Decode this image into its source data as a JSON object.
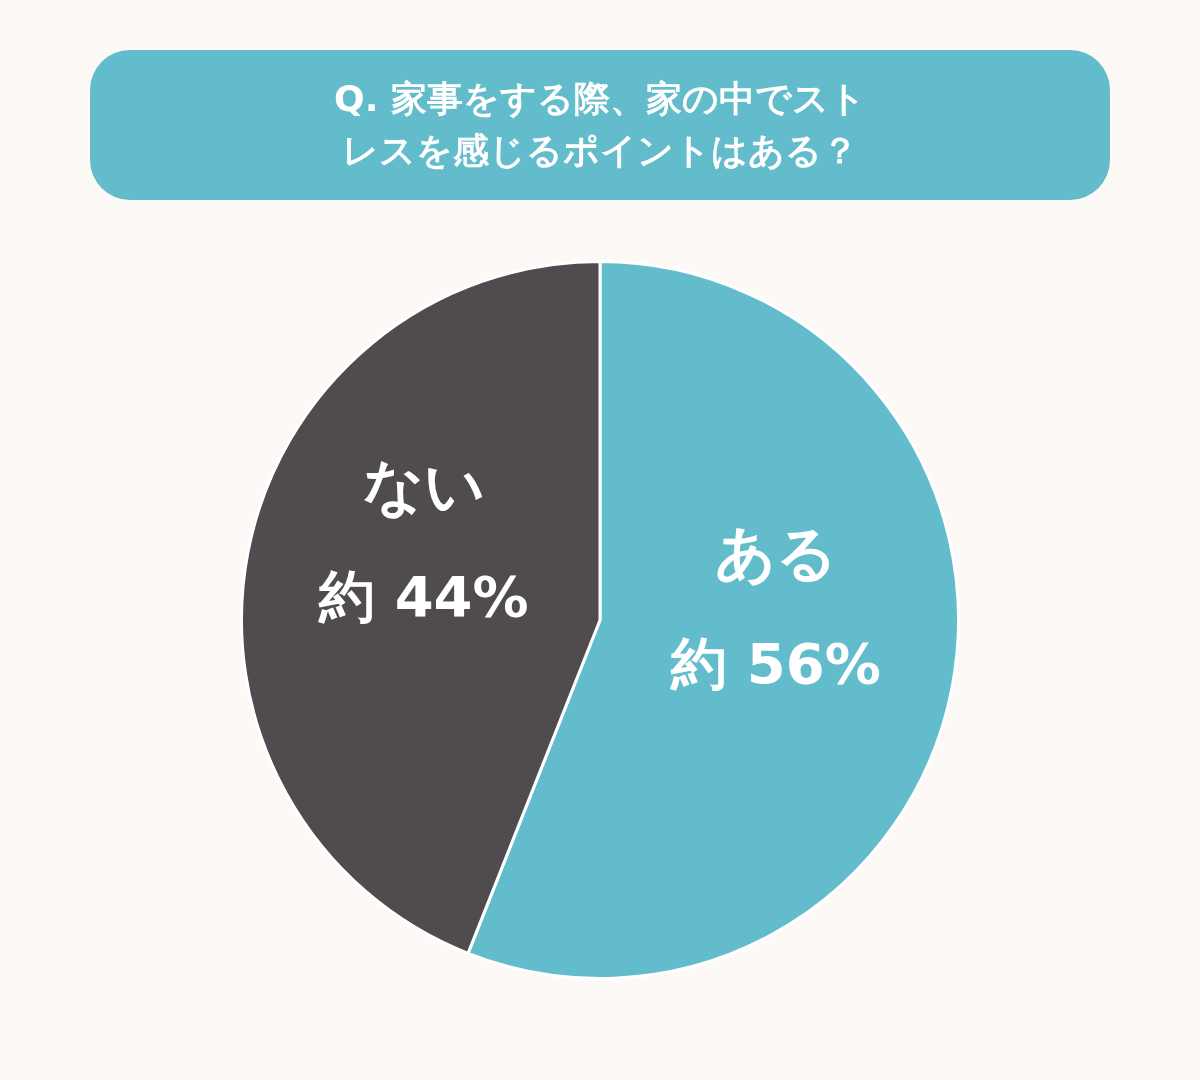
{
  "chart_data": {
    "type": "pie",
    "title": "Q. 家事をする際、家の中でストレスを感じるポイントはある？",
    "categories": [
      "ある",
      "ない"
    ],
    "values": [
      56,
      44
    ],
    "colors": [
      "#62bccb",
      "#4f4b4f"
    ],
    "value_labels": [
      "約 56%",
      "約 44%"
    ]
  }
}
